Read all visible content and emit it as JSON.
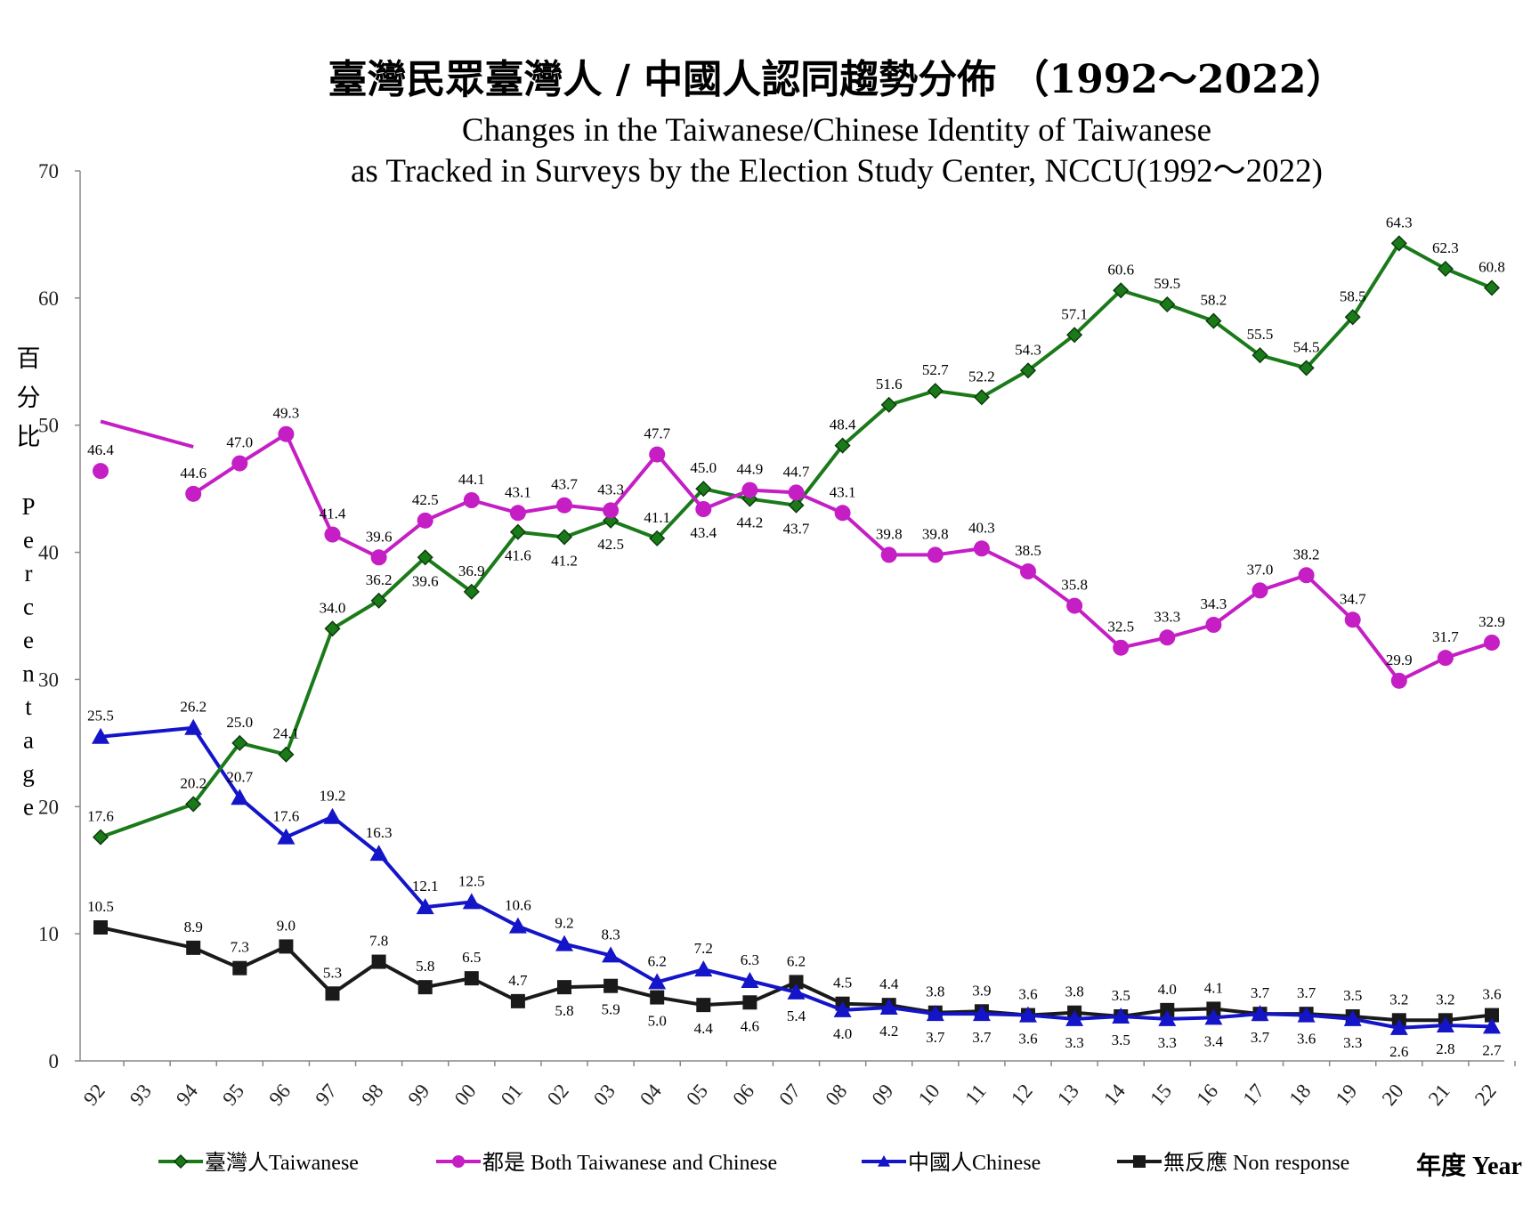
{
  "chart_data": {
    "type": "line",
    "title_zh": "臺灣民眾臺灣人 / 中國人認同趨勢分佈 （1992～2022）",
    "title_en_line1": "Changes in the Taiwanese/Chinese Identity of Taiwanese",
    "title_en_line2": "as Tracked in Surveys by the Election Study Center, NCCU(1992～2022)",
    "ylabel_zh": [
      "百",
      "分",
      "比"
    ],
    "ylabel_en": [
      "P",
      "e",
      "r",
      "c",
      "e",
      "n",
      "t",
      "a",
      "g",
      "e"
    ],
    "xlabel": "年度 Year",
    "ylim": [
      0,
      70
    ],
    "yticks": [
      "0",
      "10",
      "20",
      "30",
      "40",
      "50",
      "60",
      "70"
    ],
    "categories": [
      "92",
      "93",
      "94",
      "95",
      "96",
      "97",
      "98",
      "99",
      "00",
      "01",
      "02",
      "03",
      "04",
      "05",
      "06",
      "07",
      "08",
      "09",
      "10",
      "11",
      "12",
      "13",
      "14",
      "15",
      "16",
      "17",
      "18",
      "19",
      "20",
      "21",
      "22"
    ],
    "series": [
      {
        "name": "臺灣人Taiwanese",
        "color": "#1a7a1a",
        "marker": "diamond",
        "values": [
          17.6,
          null,
          20.2,
          25.0,
          24.1,
          34.0,
          36.2,
          39.6,
          36.9,
          41.6,
          41.2,
          42.5,
          41.1,
          45.0,
          44.2,
          43.7,
          48.4,
          51.6,
          52.7,
          52.2,
          54.3,
          57.1,
          60.6,
          59.5,
          58.2,
          55.5,
          54.5,
          58.5,
          64.3,
          62.3,
          60.8
        ],
        "labels": [
          "17.6",
          null,
          "20.2",
          "25.0",
          "24.1",
          "34.0",
          "36.2",
          "39.6",
          "36.9",
          "41.6",
          "41.2",
          "42.5",
          "41.1",
          "45.0",
          "44.2",
          "43.7",
          "48.4",
          "51.6",
          "52.7",
          "52.2",
          "54.3",
          "57.1",
          "60.6",
          "59.5",
          "58.2",
          "55.5",
          "54.5",
          "58.5",
          "64.3",
          "62.3",
          "60.8"
        ],
        "label_pos": [
          "above",
          null,
          "above",
          "above",
          "above",
          "above",
          "above",
          "below",
          "above",
          "below",
          "below",
          "below",
          "above",
          "above",
          "below",
          "below",
          "above",
          "above",
          "above",
          "above",
          "above",
          "above",
          "above",
          "above",
          "above",
          "above",
          "above",
          "above",
          "above",
          "above",
          "above"
        ]
      },
      {
        "name": "都是 Both Taiwanese and Chinese",
        "color": "#c41ec4",
        "marker": "circle",
        "values": [
          46.4,
          null,
          44.6,
          47.0,
          49.3,
          41.4,
          39.6,
          42.5,
          44.1,
          43.1,
          43.7,
          43.3,
          47.7,
          43.4,
          44.9,
          44.7,
          43.1,
          39.8,
          39.8,
          40.3,
          38.5,
          35.8,
          32.5,
          33.3,
          34.3,
          37.0,
          38.2,
          34.7,
          29.9,
          31.7,
          32.9
        ],
        "labels": [
          "46.4",
          null,
          "44.6",
          "47.0",
          "49.3",
          "41.4",
          "39.6",
          "42.5",
          "44.1",
          "43.1",
          "43.7",
          "43.3",
          "47.7",
          "43.4",
          "44.9",
          "44.7",
          "43.1",
          "39.8",
          "39.8",
          "40.3",
          "38.5",
          "35.8",
          "32.5",
          "33.3",
          "34.3",
          "37.0",
          "38.2",
          "34.7",
          "29.9",
          "31.7",
          "32.9"
        ],
        "label_pos": [
          "above",
          null,
          "above",
          "above",
          "above",
          "above",
          "above",
          "above",
          "above",
          "above",
          "above",
          "above",
          "above",
          "below",
          "above",
          "above",
          "above",
          "above",
          "above",
          "above",
          "above",
          "above",
          "above",
          "above",
          "above",
          "above",
          "above",
          "above",
          "above",
          "above",
          "above"
        ]
      },
      {
        "name": "中國人Chinese",
        "color": "#1414c8",
        "marker": "triangle",
        "values": [
          25.5,
          null,
          26.2,
          20.7,
          17.6,
          19.2,
          16.3,
          12.1,
          12.5,
          10.6,
          9.2,
          8.3,
          6.2,
          7.2,
          6.3,
          5.4,
          4.0,
          4.2,
          3.7,
          3.7,
          3.6,
          3.3,
          3.5,
          3.3,
          3.4,
          3.7,
          3.6,
          3.3,
          2.6,
          2.8,
          2.7
        ],
        "labels": [
          "25.5",
          null,
          "26.2",
          "20.7",
          "17.6",
          "19.2",
          "16.3",
          "12.1",
          "12.5",
          "10.6",
          "9.2",
          "8.3",
          "6.2",
          "7.2",
          "6.3",
          "5.4",
          "4.0",
          "4.2",
          "3.7",
          "3.7",
          "3.6",
          "3.3",
          "3.5",
          "3.3",
          "3.4",
          "3.7",
          "3.6",
          "3.3",
          "2.6",
          "2.8",
          "2.7"
        ],
        "label_pos": [
          "above",
          null,
          "above",
          "above",
          "above",
          "above",
          "above",
          "above",
          "above",
          "above",
          "above",
          "above",
          "above",
          "above",
          "above",
          "below",
          "below",
          "below",
          "below",
          "below",
          "below",
          "below",
          "below",
          "below",
          "below",
          "below",
          "below",
          "below",
          "below",
          "below",
          "below"
        ]
      },
      {
        "name": "無反應 Non response",
        "color": "#1a1a1a",
        "marker": "square",
        "values": [
          10.5,
          null,
          8.9,
          7.3,
          9.0,
          5.3,
          7.8,
          5.8,
          6.5,
          4.7,
          5.8,
          5.9,
          5.0,
          4.4,
          4.6,
          6.2,
          4.5,
          4.4,
          3.8,
          3.9,
          3.6,
          3.8,
          3.5,
          4.0,
          4.1,
          3.7,
          3.7,
          3.5,
          3.2,
          3.2,
          3.6
        ],
        "labels": [
          "10.5",
          null,
          "8.9",
          "7.3",
          "9.0",
          "5.3",
          "7.8",
          "5.8",
          "6.5",
          "4.7",
          "5.8",
          "5.9",
          "5.0",
          "4.4",
          "4.6",
          "6.2",
          "4.5",
          "4.4",
          "3.8",
          "3.9",
          "3.6",
          "3.8",
          "3.5",
          "4.0",
          "4.1",
          "3.7",
          "3.7",
          "3.5",
          "3.2",
          "3.2",
          "3.6"
        ],
        "label_pos": [
          "above",
          null,
          "above",
          "above",
          "above",
          "above",
          "above",
          "above",
          "above",
          "above",
          "below",
          "below",
          "below",
          "below",
          "below",
          "above",
          "above",
          "above",
          "above",
          "above",
          "above",
          "above",
          "above",
          "above",
          "above",
          "above",
          "above",
          "above",
          "above",
          "above",
          "above"
        ]
      }
    ],
    "annotation_line": {
      "series": "都是 Both Taiwanese and Chinese",
      "from": {
        "category": "92",
        "value": 50.3
      },
      "to": {
        "category": "94",
        "value": 48.3
      }
    },
    "legend": [
      "臺灣人Taiwanese",
      "都是 Both Taiwanese and Chinese",
      "中國人Chinese",
      "無反應 Non response"
    ]
  }
}
